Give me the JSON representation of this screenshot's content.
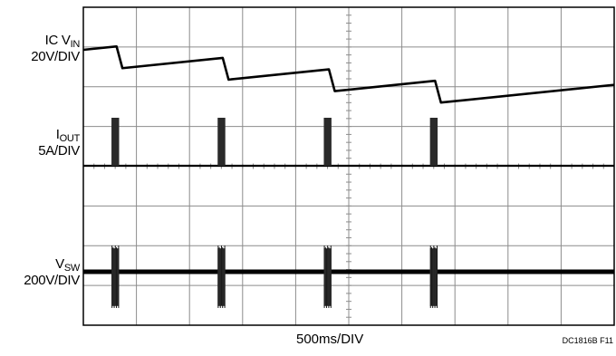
{
  "chart_data": {
    "type": "line",
    "title": "",
    "xlabel": "500ms/DIV",
    "time_per_div_ms": 500,
    "divisions": {
      "x": 10,
      "y": 8
    },
    "grid": true,
    "x_units": "ms",
    "xlim": [
      0,
      5000
    ],
    "channels": [
      {
        "name": "IC V",
        "sub": "IN",
        "scale": "20V/DIV",
        "kind": "sawtooth",
        "events_ms": [
          313,
          1313,
          2313,
          3313
        ],
        "note": "slow linear rise, sharp drop at each event"
      },
      {
        "name": "I",
        "sub": "OUT",
        "scale": "5A/DIV",
        "kind": "pulses",
        "events_ms": [
          313,
          1313,
          2313,
          3313
        ],
        "pulse_width_ms": 72
      },
      {
        "name": "V",
        "sub": "SW",
        "scale": "200V/DIV",
        "kind": "switching-bursts",
        "events_ms": [
          313,
          1313,
          2313,
          3313
        ],
        "pulse_width_ms": 72
      }
    ],
    "figure_id": "DC1816B F11"
  }
}
